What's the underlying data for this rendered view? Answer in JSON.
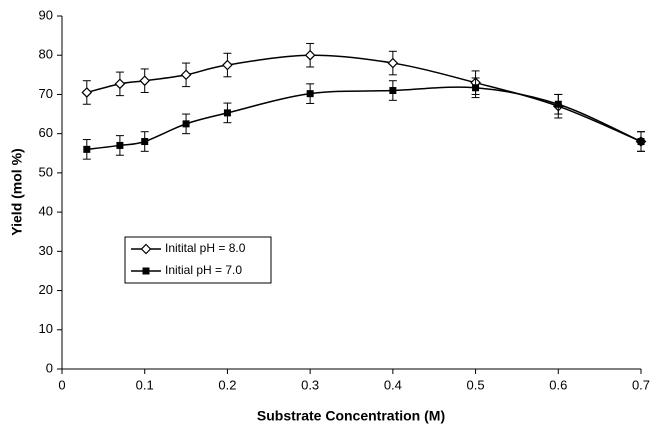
{
  "chart_data": {
    "type": "line",
    "x_label": "Substrate Concentration (M)",
    "y_label": "Yield (mol %)",
    "xlim": [
      0,
      0.7
    ],
    "xticks": [
      0,
      0.1,
      0.2,
      0.3,
      0.4,
      0.5,
      0.6,
      0.7
    ],
    "ylim": [
      0,
      90
    ],
    "yticks": [
      0,
      10,
      20,
      30,
      40,
      50,
      60,
      70,
      80,
      90
    ],
    "grid": false,
    "legend": "lower-left",
    "series": [
      {
        "name": "Initital pH = 8.0",
        "color": "#000000",
        "marker": "diamond-open",
        "x": [
          0.03,
          0.07,
          0.1,
          0.15,
          0.2,
          0.3,
          0.4,
          0.5,
          0.6,
          0.7
        ],
        "values": [
          70.5,
          72.7,
          73.5,
          75,
          77.5,
          80,
          78,
          73,
          67,
          58
        ],
        "errors": [
          3,
          3,
          3,
          3,
          3,
          3,
          3,
          3,
          3,
          2.5
        ]
      },
      {
        "name": "Initial pH = 7.0",
        "color": "#000000",
        "marker": "square-filled",
        "x": [
          0.03,
          0.07,
          0.1,
          0.15,
          0.2,
          0.3,
          0.4,
          0.5,
          0.6,
          0.7
        ],
        "values": [
          56,
          57,
          58,
          62.5,
          65.3,
          70.2,
          71,
          71.7,
          67.5,
          58
        ],
        "errors": [
          2.5,
          2.5,
          2.5,
          2.5,
          2.5,
          2.5,
          2.5,
          2.5,
          2.5,
          2.5
        ]
      }
    ]
  }
}
